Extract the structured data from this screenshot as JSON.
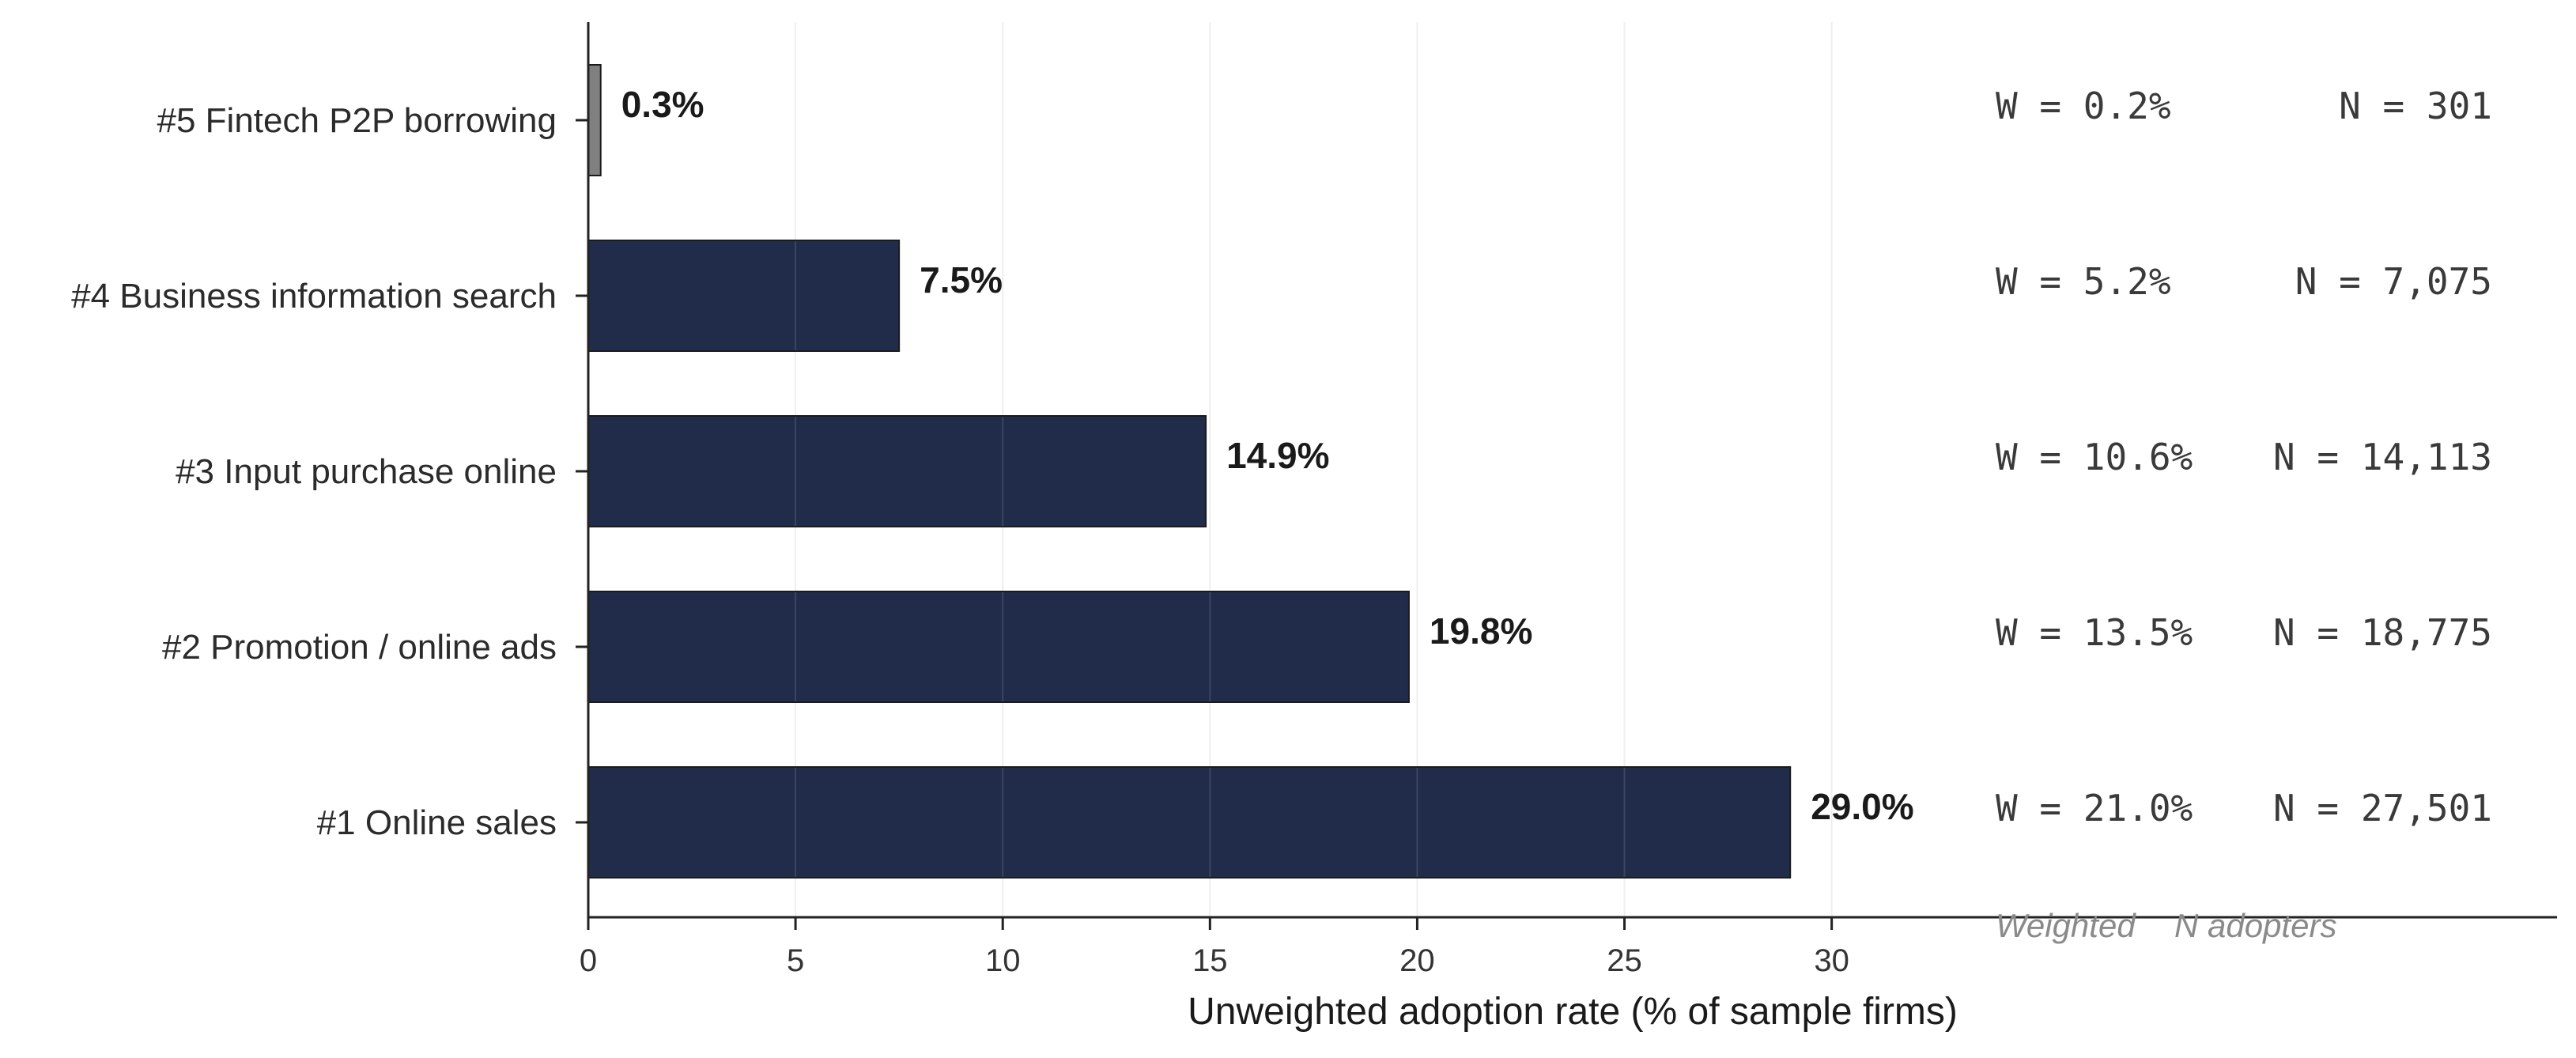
{
  "chart_data": {
    "type": "bar",
    "orientation": "horizontal",
    "categories": [
      "#5  Fintech P2P borrowing",
      "#4  Business information search",
      "#3  Input purchase online",
      "#2  Promotion / online ads",
      "#1  Online sales"
    ],
    "values": [
      0.3,
      7.5,
      14.9,
      19.8,
      29.0
    ],
    "value_labels": [
      "0.3%",
      "7.5%",
      "14.9%",
      "19.8%",
      "29.0%"
    ],
    "bar_colors": [
      "#808080",
      "#212c4a",
      "#212c4a",
      "#212c4a",
      "#212c4a"
    ],
    "weighted_labels": [
      "W =  0.2%",
      "W =  5.2%",
      "W = 10.6%",
      "W = 13.5%",
      "W = 21.0%"
    ],
    "n_labels": [
      "N =    301",
      "N =  7,075",
      "N = 14,113",
      "N = 18,775",
      "N = 27,501"
    ],
    "xlabel": "Unweighted adoption rate (% of sample firms)",
    "xticks": [
      0,
      5,
      10,
      15,
      20,
      25,
      30
    ],
    "xlim": [
      0,
      47.5
    ],
    "grid": "vertical",
    "footnote_weighted": "Weighted",
    "footnote_n": "N adopters"
  }
}
